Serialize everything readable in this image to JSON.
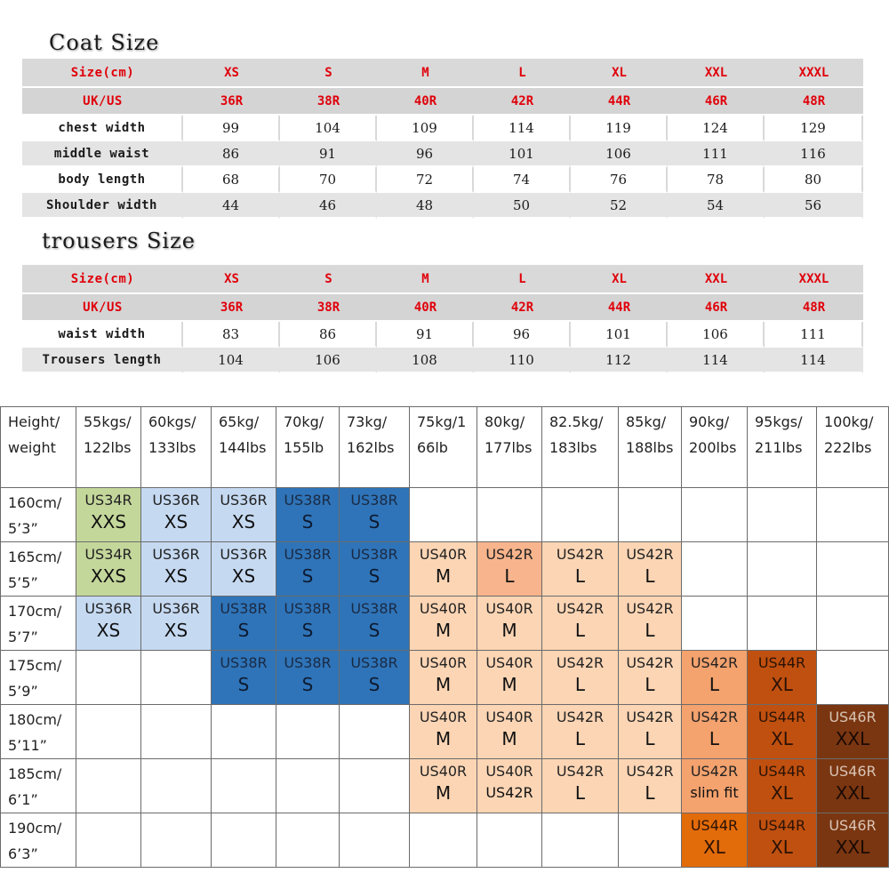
{
  "coat": {
    "title": "Coat Size",
    "header": [
      "Size(cm)",
      "XS",
      "S",
      "M",
      "L",
      "XL",
      "XXL",
      "XXXL"
    ],
    "ukus": [
      "UK/US",
      "36R",
      "38R",
      "40R",
      "42R",
      "44R",
      "46R",
      "48R"
    ],
    "rows": [
      {
        "label": "chest width",
        "values": [
          "99",
          "104",
          "109",
          "114",
          "119",
          "124",
          "129"
        ]
      },
      {
        "label": "middle waist",
        "values": [
          "86",
          "91",
          "96",
          "101",
          "106",
          "111",
          "116"
        ]
      },
      {
        "label": "body length",
        "values": [
          "68",
          "70",
          "72",
          "74",
          "76",
          "78",
          "80"
        ]
      },
      {
        "label": "Shoulder width",
        "values": [
          "44",
          "46",
          "48",
          "50",
          "52",
          "54",
          "56"
        ]
      }
    ]
  },
  "trousers": {
    "title": "trousers Size",
    "header": [
      "Size(cm)",
      "XS",
      "S",
      "M",
      "L",
      "XL",
      "XXL",
      "XXXL"
    ],
    "ukus": [
      "UK/US",
      "36R",
      "38R",
      "40R",
      "42R",
      "44R",
      "46R",
      "48R"
    ],
    "rows": [
      {
        "label": "waist width",
        "values": [
          "83",
          "86",
          "91",
          "96",
          "101",
          "106",
          "111"
        ]
      },
      {
        "label": "Trousers length",
        "values": [
          "104",
          "106",
          "108",
          "110",
          "112",
          "114",
          "114"
        ]
      }
    ]
  },
  "grid": {
    "corner": [
      "Height/",
      "weight"
    ],
    "weights": [
      [
        "55kgs/",
        "122lbs"
      ],
      [
        "60kgs/",
        "133lbs"
      ],
      [
        "65kg/",
        "144lbs"
      ],
      [
        "70kg/",
        "155lb"
      ],
      [
        "73kg/",
        "162lbs"
      ],
      [
        "75kg/1",
        "66lb"
      ],
      [
        "80kg/",
        "177lbs"
      ],
      [
        "82.5kg/",
        "183lbs"
      ],
      [
        "85kg/",
        "188lbs"
      ],
      [
        "90kg/",
        "200lbs"
      ],
      [
        "95kgs/",
        "211lbs"
      ],
      [
        "100kg/",
        "222lbs"
      ]
    ],
    "rows": [
      {
        "height": [
          "160cm/",
          "5’3”"
        ],
        "cells": [
          {
            "us": "US34R",
            "size": "XXS",
            "color": "green"
          },
          {
            "us": "US36R",
            "size": "XS",
            "color": "lblue"
          },
          {
            "us": "US36R",
            "size": "XS",
            "color": "lblue"
          },
          {
            "us": "US38R",
            "size": "S",
            "color": "dblue"
          },
          {
            "us": "US38R",
            "size": "S",
            "color": "dblue"
          },
          null,
          null,
          null,
          null,
          null,
          null,
          null
        ]
      },
      {
        "height": [
          "165cm/",
          "5’5”"
        ],
        "cells": [
          {
            "us": "US34R",
            "size": "XXS",
            "color": "green"
          },
          {
            "us": "US36R",
            "size": "XS",
            "color": "lblue"
          },
          {
            "us": "US36R",
            "size": "XS",
            "color": "lblue"
          },
          {
            "us": "US38R",
            "size": "S",
            "color": "dblue"
          },
          {
            "us": "US38R",
            "size": "S",
            "color": "dblue"
          },
          {
            "us": "US40R",
            "size": "M",
            "color": "peach1"
          },
          {
            "us": "US42R",
            "size": "L",
            "color": "peach2"
          },
          {
            "us": "US42R",
            "size": "L",
            "color": "peach1"
          },
          {
            "us": "US42R",
            "size": "L",
            "color": "peach1"
          },
          null,
          null,
          null
        ]
      },
      {
        "height": [
          "170cm/",
          "5’7”"
        ],
        "cells": [
          {
            "us": "US36R",
            "size": "XS",
            "color": "lblue"
          },
          {
            "us": "US36R",
            "size": "XS",
            "color": "lblue"
          },
          {
            "us": "US38R",
            "size": "S",
            "color": "dblue"
          },
          {
            "us": "US38R",
            "size": "S",
            "color": "dblue"
          },
          {
            "us": "US38R",
            "size": "S",
            "color": "dblue"
          },
          {
            "us": "US40R",
            "size": "M",
            "color": "peach1"
          },
          {
            "us": "US40R",
            "size": "M",
            "color": "peach1"
          },
          {
            "us": "US42R",
            "size": "L",
            "color": "peach1"
          },
          {
            "us": "US42R",
            "size": "L",
            "color": "peach1"
          },
          null,
          null,
          null
        ]
      },
      {
        "height": [
          "175cm/",
          "5’9”"
        ],
        "cells": [
          null,
          null,
          {
            "us": "US38R",
            "size": "S",
            "color": "dblue"
          },
          {
            "us": "US38R",
            "size": "S",
            "color": "dblue"
          },
          {
            "us": "US38R",
            "size": "S",
            "color": "dblue"
          },
          {
            "us": "US40R",
            "size": "M",
            "color": "peach1"
          },
          {
            "us": "US40R",
            "size": "M",
            "color": "peach1"
          },
          {
            "us": "US42R",
            "size": "L",
            "color": "peach1"
          },
          {
            "us": "US42R",
            "size": "L",
            "color": "peach1"
          },
          {
            "us": "US42R",
            "size": "L",
            "color": "peach3"
          },
          {
            "us": "US44R",
            "size": "XL",
            "color": "brown"
          },
          null
        ]
      },
      {
        "height": [
          "180cm/",
          "5’11”"
        ],
        "cells": [
          null,
          null,
          null,
          null,
          null,
          {
            "us": "US40R",
            "size": "M",
            "color": "peach1"
          },
          {
            "us": "US40R",
            "size": "M",
            "color": "peach1"
          },
          {
            "us": "US42R",
            "size": "L",
            "color": "peach1"
          },
          {
            "us": "US42R",
            "size": "L",
            "color": "peach1"
          },
          {
            "us": "US42R",
            "size": "L",
            "color": "peach3"
          },
          {
            "us": "US44R",
            "size": "XL",
            "color": "brown"
          },
          {
            "us": "US46R",
            "size": "XXL",
            "color": "dbrown"
          }
        ]
      },
      {
        "height": [
          "185cm/",
          "6’1”"
        ],
        "cells": [
          null,
          null,
          null,
          null,
          null,
          {
            "us": "US40R",
            "size": "M",
            "color": "peach1"
          },
          {
            "us": "US40R",
            "size": "US42R",
            "color": "peach1",
            "small": true
          },
          {
            "us": "US42R",
            "size": "L",
            "color": "peach1"
          },
          {
            "us": "US42R",
            "size": "L",
            "color": "peach1"
          },
          {
            "us": "US42R",
            "size": "slim fit",
            "color": "peach3",
            "small": true
          },
          {
            "us": "US44R",
            "size": "XL",
            "color": "brown"
          },
          {
            "us": "US46R",
            "size": "XXL",
            "color": "dbrown"
          }
        ]
      },
      {
        "height": [
          "190cm/",
          "6’3”"
        ],
        "cells": [
          null,
          null,
          null,
          null,
          null,
          null,
          null,
          null,
          null,
          {
            "us": "US44R",
            "size": "XL",
            "color": "org"
          },
          {
            "us": "US44R",
            "size": "XL",
            "color": "brown"
          },
          {
            "us": "US46R",
            "size": "XXL",
            "color": "dbrown"
          }
        ]
      }
    ]
  }
}
